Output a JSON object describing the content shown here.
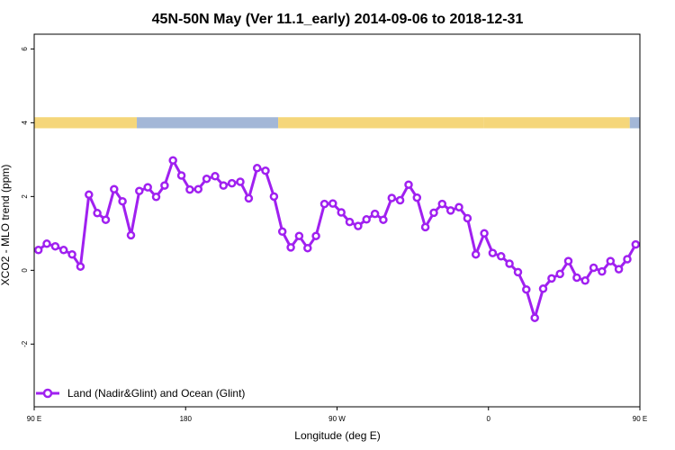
{
  "chart_data": {
    "type": "line",
    "title": "45N-50N May (Ver 11.1_early)   2014-09-06 to 2018-12-31",
    "xlabel": "Longitude (deg E)",
    "ylabel": "XCO2 - MLO trend (ppm)",
    "xlim": [
      90,
      450
    ],
    "ylim": [
      -3.7,
      6.4
    ],
    "x_ticks": [
      {
        "value": 90,
        "label": "90 E"
      },
      {
        "value": 180,
        "label": "180"
      },
      {
        "value": 270,
        "label": "90 W"
      },
      {
        "value": 360,
        "label": "0"
      },
      {
        "value": 450,
        "label": "90 E"
      },
      {
        "value": 540,
        "label": "180"
      }
    ],
    "y_ticks": [
      {
        "value": -2,
        "label": "-2"
      },
      {
        "value": 0,
        "label": "0"
      },
      {
        "value": 2,
        "label": "2"
      },
      {
        "value": 4,
        "label": "4"
      },
      {
        "value": 6,
        "label": "6"
      }
    ],
    "land_ocean_strip": {
      "y_low": 3.85,
      "y_high": 4.15,
      "segments": [
        {
          "x0": 90,
          "x1": 151,
          "type": "land"
        },
        {
          "x0": 151,
          "x1": 235,
          "type": "ocean"
        },
        {
          "x0": 235,
          "x1": 357,
          "type": "land"
        },
        {
          "x0": 357,
          "x1": 444,
          "type": "land"
        },
        {
          "x0": 444,
          "x1": 450,
          "type": "ocean"
        }
      ],
      "colors": {
        "land": "#f5d67a",
        "ocean": "#a3b7d7"
      }
    },
    "series": [
      {
        "name": "Land (Nadir&Glint) and Ocean (Glint)",
        "color": "#a020f0",
        "x": [
          92.5,
          97.5,
          102.5,
          107.5,
          112.5,
          117.5,
          122.5,
          127.5,
          132.5,
          137.5,
          142.5,
          147.5,
          152.5,
          157.5,
          162.5,
          167.5,
          172.5,
          177.5,
          182.5,
          187.5,
          192.5,
          197.5,
          202.5,
          207.5,
          212.5,
          217.5,
          222.5,
          227.5,
          232.5,
          237.5,
          242.5,
          247.5,
          252.5,
          257.5,
          262.5,
          267.5,
          272.5,
          277.5,
          282.5,
          287.5,
          292.5,
          297.5,
          302.5,
          307.5,
          312.5,
          317.5,
          322.5,
          327.5,
          332.5,
          337.5,
          342.5,
          347.5,
          352.5,
          357.5,
          362.5,
          367.5,
          372.5,
          377.5,
          382.5,
          387.5,
          392.5,
          397.5,
          402.5,
          407.5,
          412.5,
          417.5,
          422.5,
          427.5,
          432.5,
          437.5,
          442.5,
          447.5
        ],
        "y": [
          0.55,
          0.72,
          0.65,
          0.55,
          0.43,
          0.1,
          2.05,
          1.55,
          1.37,
          2.2,
          1.87,
          0.95,
          2.15,
          2.25,
          1.99,
          2.3,
          2.98,
          2.57,
          2.19,
          2.2,
          2.48,
          2.55,
          2.3,
          2.36,
          2.4,
          1.95,
          2.77,
          2.7,
          2.0,
          1.05,
          0.62,
          0.93,
          0.6,
          0.93,
          1.8,
          1.81,
          1.57,
          1.31,
          1.2,
          1.38,
          1.53,
          1.37,
          1.96,
          1.9,
          2.32,
          1.97,
          1.17,
          1.56,
          1.8,
          1.62,
          1.71,
          1.41,
          0.43,
          1.0,
          0.47,
          0.38,
          0.18,
          -0.05,
          -0.52,
          -1.29,
          -0.5,
          -0.22,
          -0.1,
          0.25,
          -0.2,
          -0.28,
          0.07,
          -0.03,
          0.25,
          0.03,
          0.3,
          0.7
        ]
      }
    ],
    "legend": {
      "position": "bottom-left"
    },
    "grid": false
  }
}
